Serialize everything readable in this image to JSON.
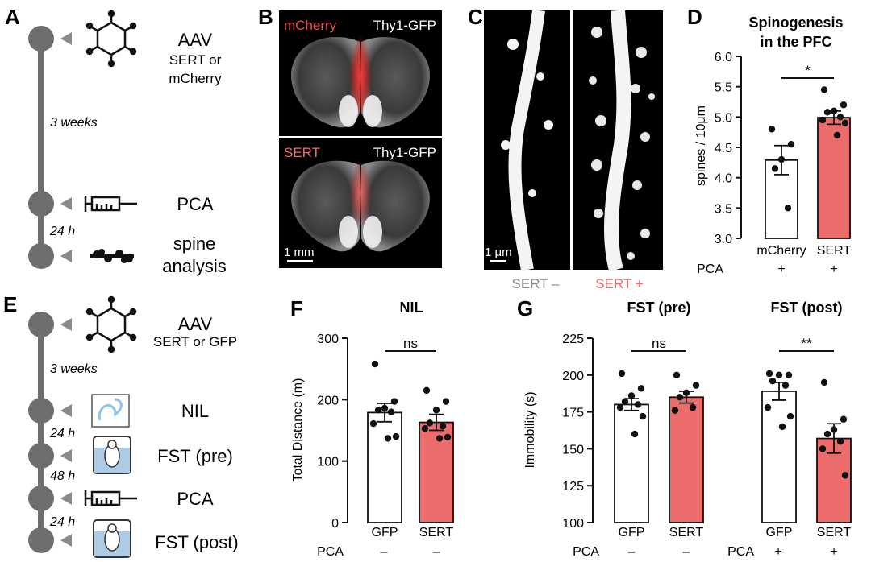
{
  "colors": {
    "sert_red": "#ec6b6b",
    "dark_gray": "#6e6e6e",
    "light_gray": "#8a8a8a",
    "water": "#aecbe6"
  },
  "panelA": {
    "letter": "A",
    "label_aav": "AAV",
    "label_aav_sub1": "SERT or",
    "label_aav_sub2": "mCherry",
    "gap1": "3 weeks",
    "label_pca": "PCA",
    "gap2": "24 h",
    "label_spine1": "spine",
    "label_spine2": "analysis",
    "icons": [
      "virus-icon",
      "syringe-icon",
      "dendrite-icon"
    ]
  },
  "panelB": {
    "letter": "B",
    "top_left": "mCherry",
    "top_right": "Thy1-GFP",
    "bottom_left": "SERT",
    "bottom_right": "Thy1-GFP",
    "scale": "1 mm"
  },
  "panelC": {
    "letter": "C",
    "scale": "1 μm",
    "label_left": "SERT –",
    "label_right": "SERT +"
  },
  "panelD": {
    "letter": "D",
    "title1": "Spinogenesis",
    "title2": "in  the PFC",
    "ylabel": "spines / 10μm",
    "star": "*",
    "pca_label": "PCA",
    "pca_values": [
      "+",
      "+"
    ]
  },
  "panelE": {
    "letter": "E",
    "label_aav": "AAV",
    "label_aav_sub": "SERT or GFP",
    "gap1": "3 weeks",
    "label_nil": "NIL",
    "gap2": "24 h",
    "label_fst_pre": "FST (pre)",
    "gap3": "48 h",
    "label_pca": "PCA",
    "gap4": "24 h",
    "label_fst_post": "FST (post)",
    "icons": [
      "virus-icon",
      "maze-icon",
      "beaker-mouse-icon",
      "syringe-icon",
      "beaker-mouse-icon"
    ]
  },
  "panelF": {
    "letter": "F",
    "title": "NIL",
    "sig": "ns",
    "pca_label": "PCA",
    "pca_values": [
      "–",
      "–"
    ]
  },
  "panelG": {
    "letter": "G",
    "title_pre": "FST (pre)",
    "title_post": "FST (post)",
    "sig_pre": "ns",
    "sig_post": "**",
    "pca_label": "PCA",
    "pca_label2": "PCA",
    "pca_values": [
      "–",
      "–",
      "+",
      "+"
    ]
  },
  "chart_data": [
    {
      "panel": "D",
      "type": "bar",
      "title": "Spinogenesis in the PFC",
      "xlabel": "",
      "ylabel": "spines / 10μm",
      "ylim": [
        3.0,
        6.0
      ],
      "yticks": [
        "3.0",
        "3.5",
        "4.0",
        "4.5",
        "5.0",
        "5.5",
        "6.0"
      ],
      "categories": [
        "mCherry",
        "SERT"
      ],
      "values": [
        4.29,
        4.99
      ],
      "sem": [
        0.24,
        0.11
      ],
      "points": [
        [
          4.8,
          4.55,
          4.3,
          4.15,
          3.5
        ],
        [
          5.45,
          5.2,
          5.1,
          5.08,
          5.0,
          4.95,
          4.9,
          4.7
        ]
      ],
      "fill": [
        "#ffffff",
        "#ec6b6b"
      ],
      "significance": "*"
    },
    {
      "panel": "F",
      "type": "bar",
      "title": "NIL",
      "xlabel": "",
      "ylabel": "Total Distance (m)",
      "ylim": [
        0,
        300
      ],
      "yticks": [
        "0",
        "100",
        "200",
        "300"
      ],
      "categories": [
        "GFP",
        "SERT"
      ],
      "values": [
        179,
        163
      ],
      "sem": [
        15,
        13
      ],
      "points": [
        [
          258,
          197,
          186,
          183,
          180,
          161,
          140,
          137
        ],
        [
          215,
          197,
          183,
          162,
          157,
          153,
          139,
          137
        ]
      ],
      "fill": [
        "#ffffff",
        "#ec6b6b"
      ],
      "significance": "ns"
    },
    {
      "panel": "G",
      "type": "bar",
      "title": "FST (pre) / FST (post)",
      "xlabel": "",
      "ylabel": "Immobility (s)",
      "ylim": [
        100,
        225
      ],
      "yticks": [
        "100",
        "125",
        "150",
        "175",
        "200",
        "225"
      ],
      "categories": [
        "GFP",
        "SERT",
        "GFP",
        "SERT"
      ],
      "values": [
        180,
        185,
        189,
        157
      ],
      "sem": [
        4,
        4,
        6,
        10
      ],
      "points": [
        [
          201,
          191,
          186,
          182,
          180,
          178,
          172,
          160
        ],
        [
          200,
          193,
          188,
          185,
          178,
          176
        ],
        [
          201,
          200,
          200,
          196,
          193,
          178,
          172,
          165
        ],
        [
          195,
          170,
          163,
          160,
          155,
          150,
          132
        ]
      ],
      "fill": [
        "#ffffff",
        "#ec6b6b",
        "#ffffff",
        "#ec6b6b"
      ],
      "groups": [
        "FST (pre)",
        "FST (pre)",
        "FST (post)",
        "FST (post)"
      ],
      "significance": [
        "ns",
        "**"
      ]
    }
  ]
}
